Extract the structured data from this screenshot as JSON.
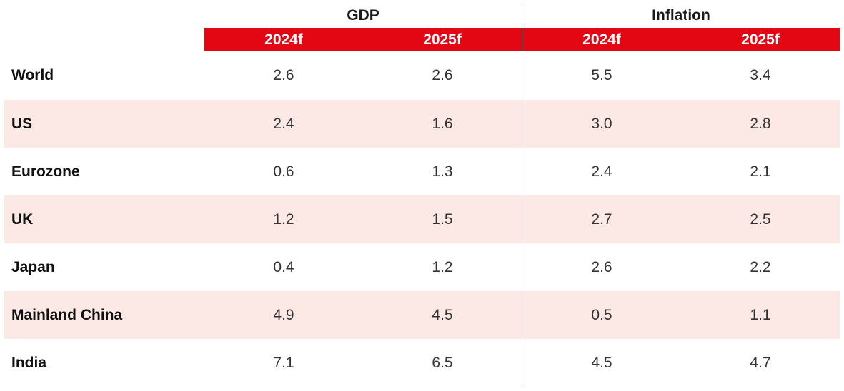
{
  "groups": {
    "gdp": "GDP",
    "inflation": "Inflation"
  },
  "columns": [
    "2024f",
    "2025f",
    "2024f",
    "2025f"
  ],
  "rows": [
    {
      "label": "World",
      "values": [
        "2.6",
        "2.6",
        "5.5",
        "3.4"
      ]
    },
    {
      "label": "US",
      "values": [
        "2.4",
        "1.6",
        "3.0",
        "2.8"
      ]
    },
    {
      "label": "Eurozone",
      "values": [
        "0.6",
        "1.3",
        "2.4",
        "2.1"
      ]
    },
    {
      "label": "UK",
      "values": [
        "1.2",
        "1.5",
        "2.7",
        "2.5"
      ]
    },
    {
      "label": "Japan",
      "values": [
        "0.4",
        "1.2",
        "2.6",
        "2.2"
      ]
    },
    {
      "label": "Mainland China",
      "values": [
        "4.9",
        "4.5",
        "0.5",
        "1.1"
      ]
    },
    {
      "label": "India",
      "values": [
        "7.1",
        "6.5",
        "4.5",
        "4.7"
      ]
    }
  ],
  "colors": {
    "header_red": "#e30613",
    "row_shade": "#fce9e5",
    "divider": "#8a8a8a"
  }
}
